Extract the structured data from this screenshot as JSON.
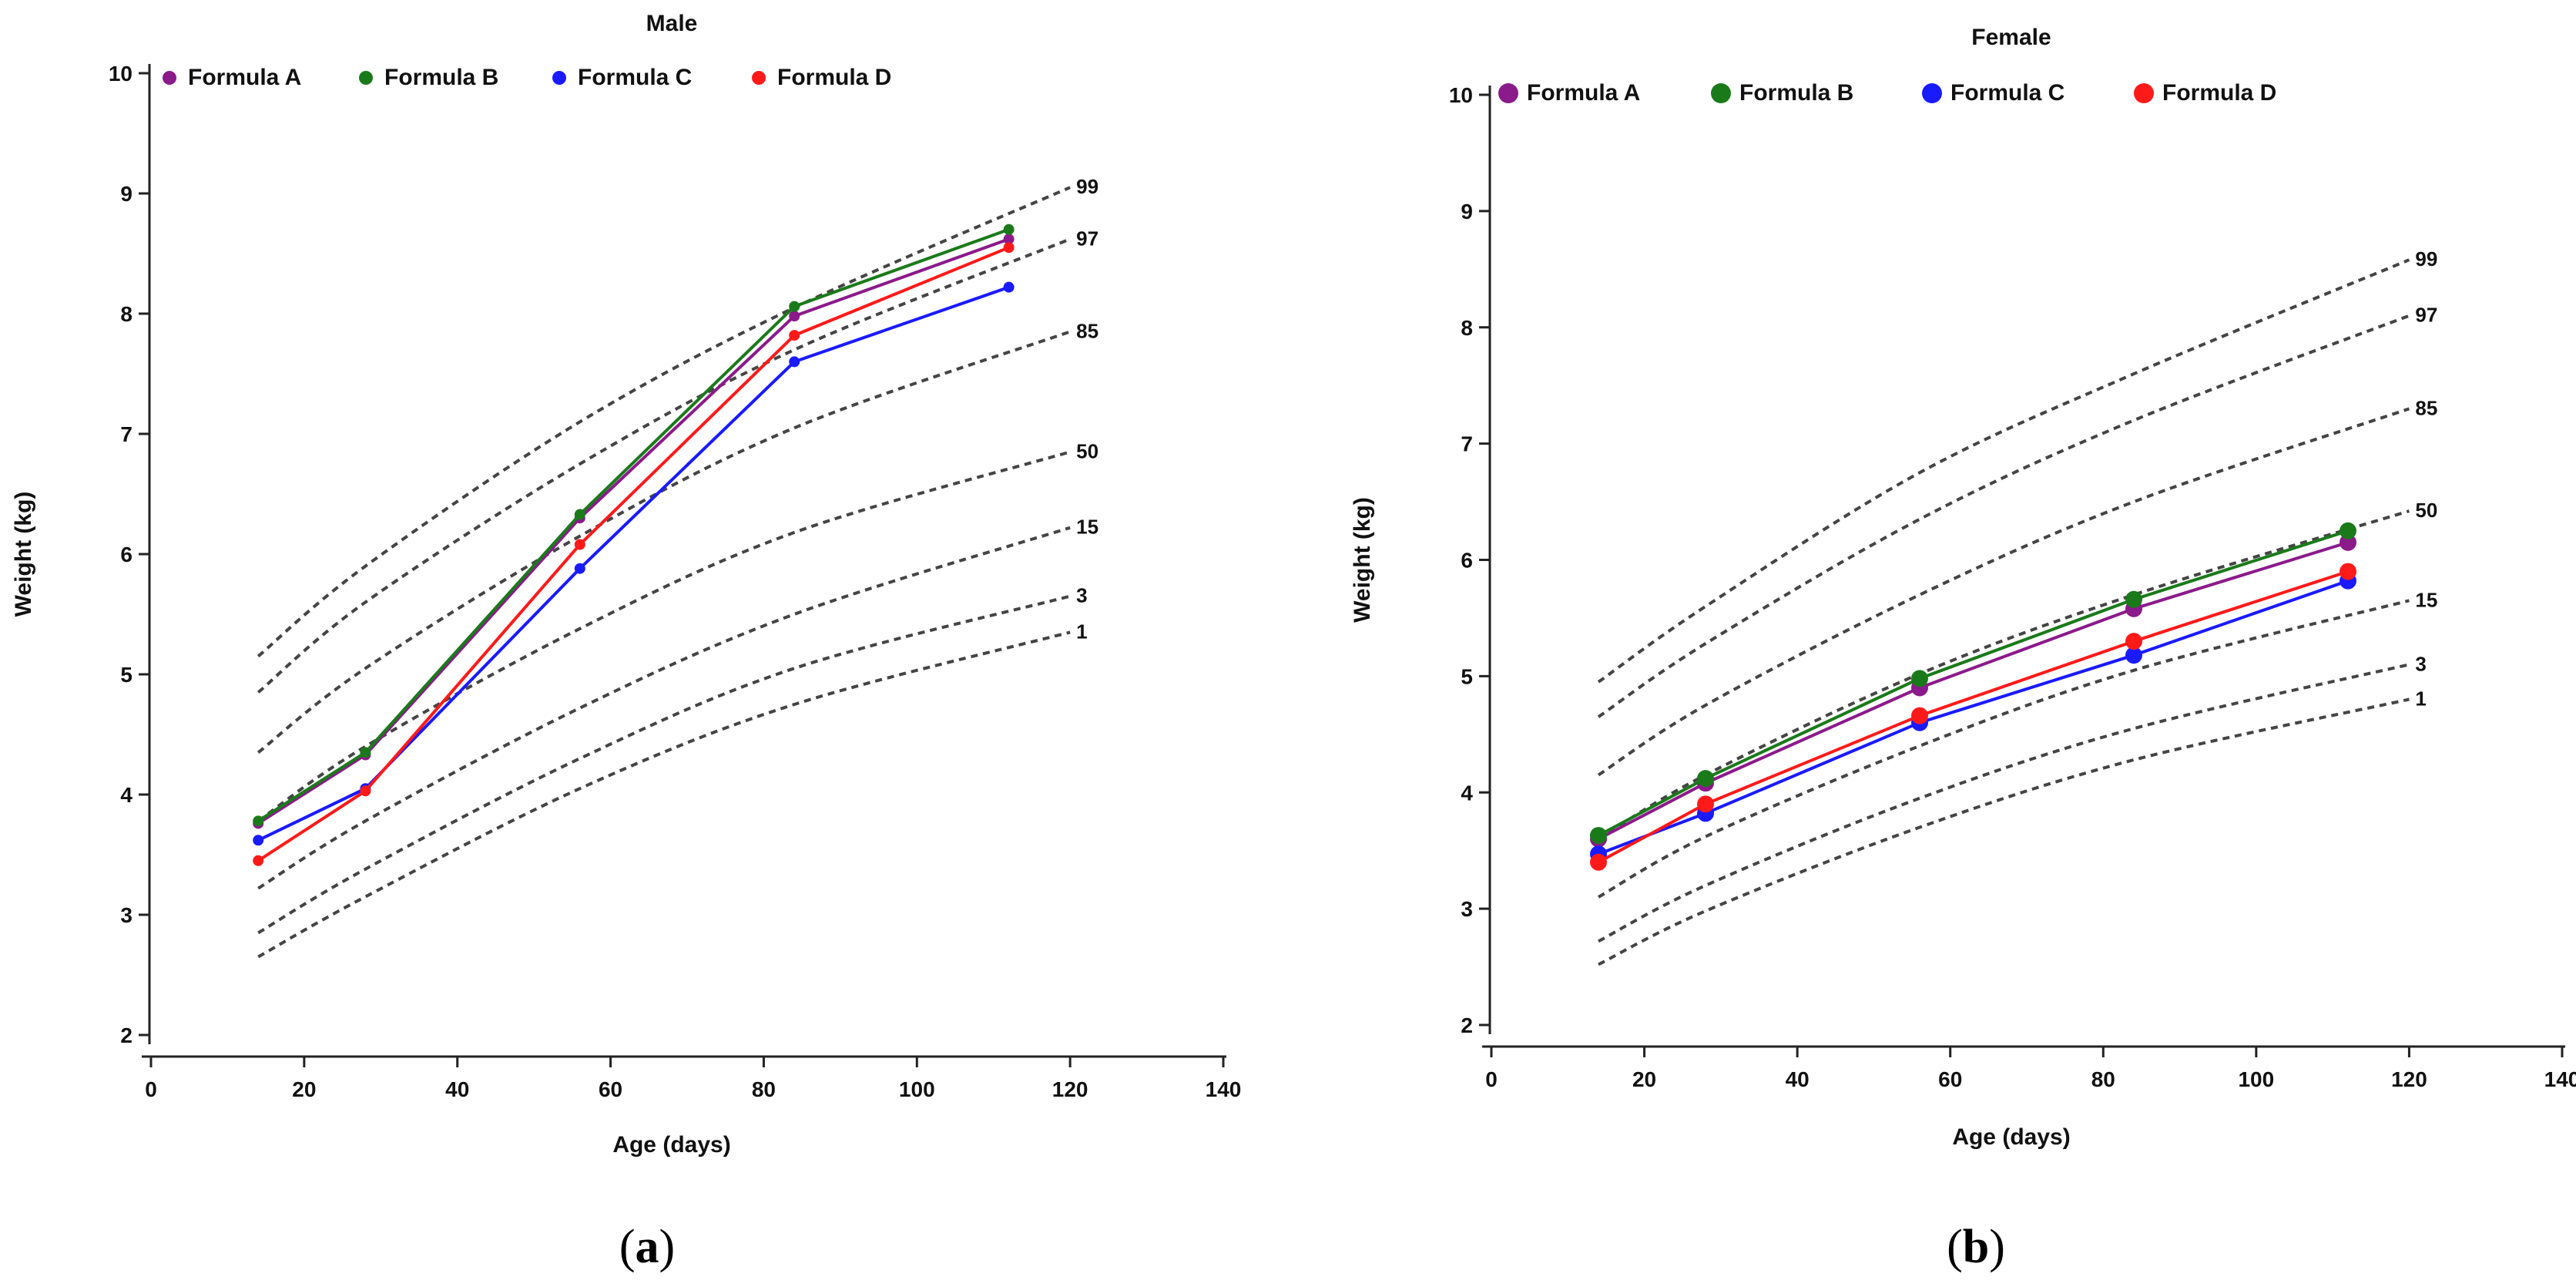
{
  "chart_data": [
    {
      "type": "line",
      "panel_label": "(a)",
      "panel_letter": "a",
      "title": "Male",
      "xlabel": "Age (days)",
      "ylabel": "Weight (kg)",
      "xlim": [
        0,
        140
      ],
      "ylim": [
        2,
        10
      ],
      "xticks": [
        0,
        20,
        40,
        60,
        80,
        100,
        120,
        140
      ],
      "yticks": [
        2,
        3,
        4,
        5,
        6,
        7,
        8,
        9,
        10
      ],
      "legend_position": "top-left",
      "series": [
        {
          "name": "Formula A",
          "color": "#8b1a8b",
          "x": [
            14,
            28,
            56,
            84,
            112
          ],
          "values": [
            3.76,
            4.33,
            6.3,
            7.98,
            8.62
          ]
        },
        {
          "name": "Formula B",
          "color": "#1a7a1a",
          "x": [
            14,
            28,
            56,
            84,
            112
          ],
          "values": [
            3.78,
            4.35,
            6.33,
            8.06,
            8.7
          ]
        },
        {
          "name": "Formula C",
          "color": "#1a1aff",
          "x": [
            14,
            28,
            56,
            84,
            112
          ],
          "values": [
            3.62,
            4.05,
            5.88,
            7.6,
            8.22
          ]
        },
        {
          "name": "Formula D",
          "color": "#ff1a1a",
          "x": [
            14,
            28,
            56,
            84,
            112
          ],
          "values": [
            3.45,
            4.03,
            6.08,
            7.82,
            8.55
          ]
        }
      ],
      "percentiles": [
        {
          "label": "99",
          "x": [
            14,
            28,
            56,
            84,
            120
          ],
          "values": [
            5.15,
            5.9,
            7.1,
            8.05,
            9.05
          ]
        },
        {
          "label": "97",
          "x": [
            14,
            28,
            56,
            84,
            120
          ],
          "values": [
            4.85,
            5.6,
            6.75,
            7.7,
            8.62
          ]
        },
        {
          "label": "85",
          "x": [
            14,
            28,
            56,
            84,
            120
          ],
          "values": [
            4.35,
            5.05,
            6.15,
            7.05,
            7.85
          ]
        },
        {
          "label": "50",
          "x": [
            14,
            28,
            56,
            84,
            120
          ],
          "values": [
            3.78,
            4.4,
            5.38,
            6.18,
            6.85
          ]
        },
        {
          "label": "15",
          "x": [
            14,
            28,
            56,
            84,
            120
          ],
          "values": [
            3.22,
            3.78,
            4.72,
            5.5,
            6.22
          ]
        },
        {
          "label": "3",
          "x": [
            14,
            28,
            56,
            84,
            120
          ],
          "values": [
            2.85,
            3.38,
            4.3,
            5.05,
            5.65
          ]
        },
        {
          "label": "1",
          "x": [
            14,
            28,
            56,
            84,
            120
          ],
          "values": [
            2.65,
            3.15,
            4.05,
            4.75,
            5.35
          ]
        }
      ]
    },
    {
      "type": "line",
      "panel_label": "(b)",
      "panel_letter": "b",
      "title": "Female",
      "xlabel": "Age (days)",
      "ylabel": "Weight (kg)",
      "xlim": [
        0,
        140
      ],
      "ylim": [
        2,
        10
      ],
      "xticks": [
        0,
        20,
        40,
        60,
        80,
        100,
        120,
        140
      ],
      "yticks": [
        2,
        3,
        4,
        5,
        6,
        7,
        8,
        9,
        10
      ],
      "legend_position": "top-left",
      "series": [
        {
          "name": "Formula A",
          "color": "#8b1a8b",
          "x": [
            14,
            28,
            56,
            84,
            112
          ],
          "values": [
            3.6,
            4.08,
            4.9,
            5.58,
            6.15
          ]
        },
        {
          "name": "Formula B",
          "color": "#1a7a1a",
          "x": [
            14,
            28,
            56,
            84,
            112
          ],
          "values": [
            3.63,
            4.12,
            4.98,
            5.66,
            6.25
          ]
        },
        {
          "name": "Formula C",
          "color": "#1a1aff",
          "x": [
            14,
            28,
            56,
            84,
            112
          ],
          "values": [
            3.47,
            3.82,
            4.6,
            5.18,
            5.82
          ]
        },
        {
          "name": "Formula D",
          "color": "#ff1a1a",
          "x": [
            14,
            28,
            56,
            84,
            112
          ],
          "values": [
            3.4,
            3.9,
            4.66,
            5.3,
            5.9
          ]
        }
      ],
      "percentiles": [
        {
          "label": "99",
          "x": [
            14,
            28,
            56,
            84,
            120
          ],
          "values": [
            4.95,
            5.6,
            6.75,
            7.6,
            8.58
          ]
        },
        {
          "label": "97",
          "x": [
            14,
            28,
            56,
            84,
            120
          ],
          "values": [
            4.65,
            5.28,
            6.35,
            7.2,
            8.1
          ]
        },
        {
          "label": "85",
          "x": [
            14,
            28,
            56,
            84,
            120
          ],
          "values": [
            4.15,
            4.75,
            5.7,
            6.5,
            7.3
          ]
        },
        {
          "label": "50",
          "x": [
            14,
            28,
            56,
            84,
            120
          ],
          "values": [
            3.6,
            4.15,
            5.02,
            5.7,
            6.42
          ]
        },
        {
          "label": "15",
          "x": [
            14,
            28,
            56,
            84,
            120
          ],
          "values": [
            3.1,
            3.62,
            4.4,
            5.05,
            5.65
          ]
        },
        {
          "label": "3",
          "x": [
            14,
            28,
            56,
            84,
            120
          ],
          "values": [
            2.72,
            3.2,
            3.95,
            4.55,
            5.1
          ]
        },
        {
          "label": "1",
          "x": [
            14,
            28,
            56,
            84,
            120
          ],
          "values": [
            2.52,
            2.98,
            3.7,
            4.28,
            4.8
          ]
        }
      ]
    }
  ]
}
